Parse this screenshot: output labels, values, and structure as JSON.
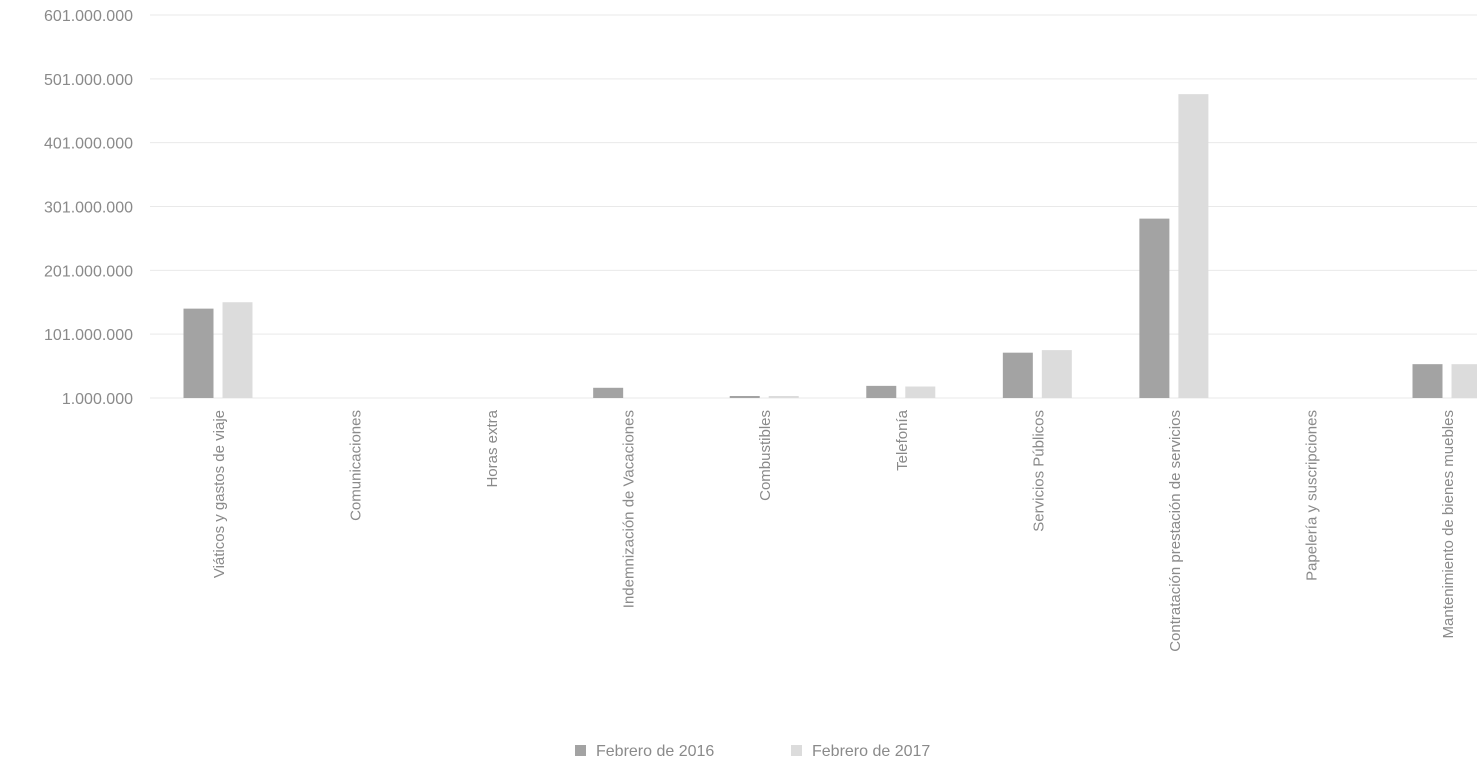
{
  "chart_data": {
    "type": "bar",
    "title": "",
    "xlabel": "",
    "ylabel": "",
    "categories": [
      "Viáticos y gastos de viaje",
      "Comunicaciones",
      "Horas extra",
      "Indemnización de Vacaciones",
      "Combustibles",
      "Telefonía",
      "Servicios Públicos",
      "Contratación prestación de servicios",
      "Papelería y suscripciones",
      "Mantenimiento de bienes muebles"
    ],
    "series": [
      {
        "name": "Febrero de 2016",
        "values": [
          141000000,
          0,
          0,
          17000000,
          3000000,
          20000000,
          72000000,
          282000000,
          0,
          54000000
        ]
      },
      {
        "name": "Febrero de 2017",
        "values": [
          151000000,
          0,
          0,
          0,
          4000000,
          19000000,
          76000000,
          477000000,
          0,
          54000000
        ]
      }
    ],
    "yticks": [
      "1.000.000",
      "101.000.000",
      "201.000.000",
      "301.000.000",
      "401.000.000",
      "501.000.000",
      "601.000.000"
    ],
    "ytick_values": [
      1000000,
      101000000,
      201000000,
      301000000,
      401000000,
      501000000,
      601000000
    ],
    "ylim": [
      1000000,
      601000000
    ],
    "grid": true,
    "legend_position": "bottom",
    "colors": {
      "series": [
        "#a3a3a3",
        "#dcdcdc"
      ],
      "text": "#8a8a8a",
      "grid": "#e9e9e9"
    }
  }
}
